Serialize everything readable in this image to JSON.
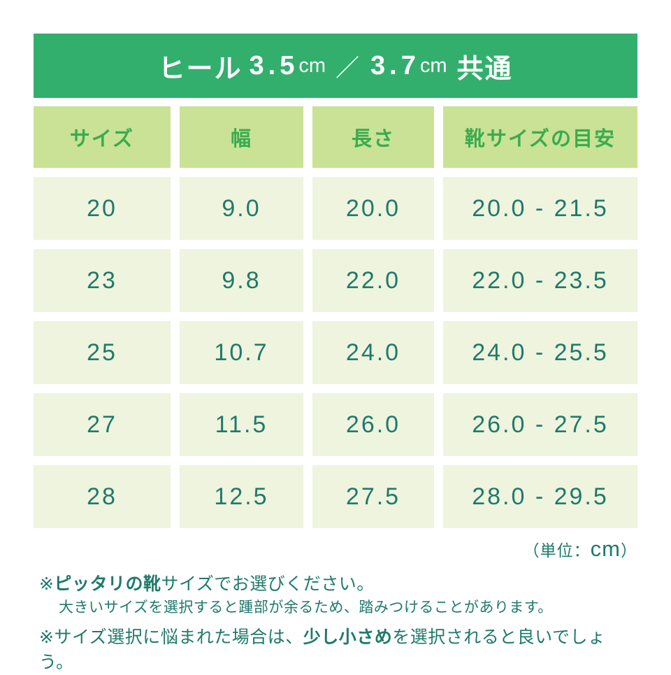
{
  "banner": {
    "label": "ヒール",
    "value1": "3.5",
    "unit1": "cm",
    "separator": "／",
    "value2": "3.7",
    "unit2": "cm",
    "suffix": "共通"
  },
  "table": {
    "columns": [
      "サイズ",
      "幅",
      "長さ",
      "靴サイズの目安"
    ],
    "rows": [
      [
        "20",
        "9.0",
        "20.0",
        "20.0 - 21.5"
      ],
      [
        "23",
        "9.8",
        "22.0",
        "22.0 - 23.5"
      ],
      [
        "25",
        "10.7",
        "24.0",
        "24.0 - 25.5"
      ],
      [
        "27",
        "11.5",
        "26.0",
        "26.0 - 27.5"
      ],
      [
        "28",
        "12.5",
        "27.5",
        "28.0 - 29.5"
      ]
    ]
  },
  "unit_note": {
    "prefix": "（単位：",
    "unit": "cm",
    "suffix": "）"
  },
  "footnotes": {
    "note1_marker": "※",
    "note1_bold": "ピッタリの靴",
    "note1_rest": "サイズでお選びください。",
    "note1_line2": "大きいサイズを選択すると踵部が余るため、踏みつけることがあります。",
    "note2_marker": "※",
    "note2_pre": "サイズ選択に悩まれた場合は、",
    "note2_bold": "少し小さめ",
    "note2_post": "を選択されると良いでしょう。"
  },
  "colors": {
    "banner_bg": "#33af6d",
    "banner_text": "#ffffff",
    "header_bg": "#c9e295",
    "header_text": "#3aab4f",
    "cell_bg": "#eff4de",
    "cell_text": "#1f7a6b"
  },
  "chart_data": {
    "type": "table",
    "title": "ヒール 3.5cm ／ 3.7cm 共通",
    "unit": "cm",
    "columns": [
      "サイズ",
      "幅",
      "長さ",
      "靴サイズの目安"
    ],
    "rows": [
      [
        "20",
        "9.0",
        "20.0",
        "20.0 - 21.5"
      ],
      [
        "23",
        "9.8",
        "22.0",
        "22.0 - 23.5"
      ],
      [
        "25",
        "10.7",
        "24.0",
        "24.0 - 25.5"
      ],
      [
        "27",
        "11.5",
        "26.0",
        "26.0 - 27.5"
      ],
      [
        "28",
        "12.5",
        "27.5",
        "28.0 - 29.5"
      ]
    ],
    "notes": [
      "※ピッタリの靴サイズでお選びください。大きいサイズを選択すると踵部が余るため、踏みつけることがあります。",
      "※サイズ選択に悩まれた場合は、少し小さめを選択されると良いでしょう。"
    ]
  }
}
